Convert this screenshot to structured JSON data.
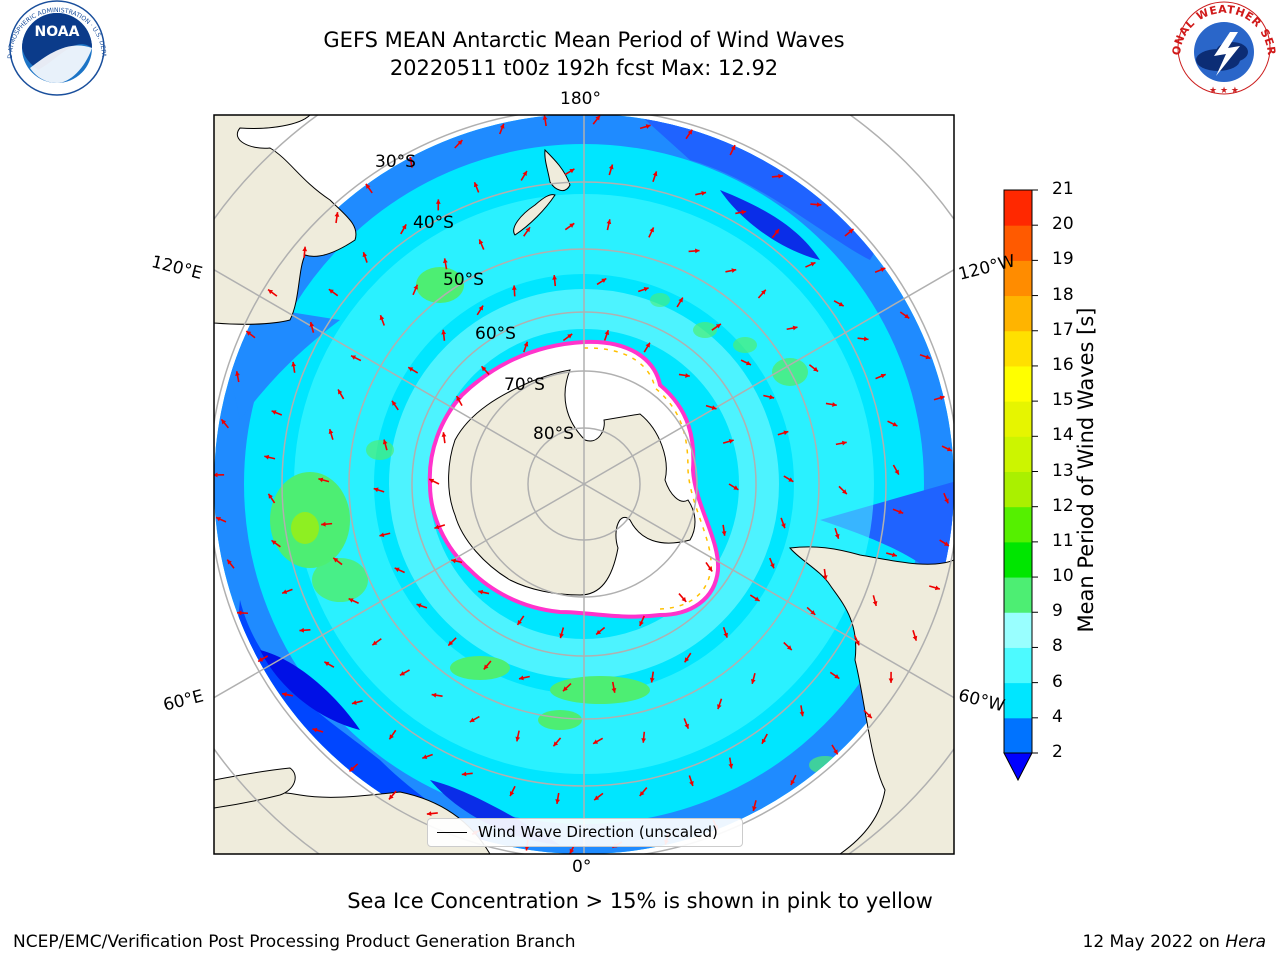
{
  "header": {
    "title_line1": "GEFS MEAN Antarctic Mean Period of Wind Waves",
    "title_line2": "20220511 t00z 192h fcst   Max: 12.92"
  },
  "logos": {
    "left_agency": "NOAA",
    "left_ring_text": "NATIONAL OCEANIC AND ATMOSPHERIC ADMINISTRATION · U.S. DEPARTMENT OF COMMERCE",
    "right_ring_text": "NATIONAL WEATHER SERVICE"
  },
  "map": {
    "projection": "south-polar-stereographic",
    "longitude_labels": {
      "top": "180°",
      "bottom": "0°",
      "left_upper": "120°E",
      "left_lower": "60°E",
      "right_upper": "120°W",
      "right_lower": "60°W"
    },
    "latitude_labels": [
      "30°S",
      "40°S",
      "50°S",
      "60°S",
      "70°S",
      "80°S"
    ],
    "colors": {
      "land": "#efecdc",
      "ice": "#ffffff",
      "ice_edge_pink": "#ff33cc",
      "ice_edge_yellow": "#ffc000",
      "grid": "#b0b0b0",
      "arrow": "#ee0000",
      "coast": "#000000"
    },
    "legend_label": "Wind Wave Direction (unscaled)"
  },
  "colorbar": {
    "label": "Mean Period of Wind Waves [s]",
    "ticks": [
      "2",
      "4",
      "6",
      "8",
      "9",
      "10",
      "11",
      "12",
      "13",
      "14",
      "15",
      "16",
      "17",
      "18",
      "19",
      "20",
      "21"
    ],
    "colors": [
      "#0073ff",
      "#00e6ff",
      "#4dfaff",
      "#99ffff",
      "#4dee73",
      "#00e600",
      "#55f000",
      "#aaf000",
      "#ccf500",
      "#e6f500",
      "#ffff00",
      "#ffe000",
      "#ffb400",
      "#ff8c00",
      "#ff5a00",
      "#ff2800",
      "#ff0000"
    ],
    "under_color": "#0000ff"
  },
  "chart_data": {
    "type": "heatmap",
    "title": "GEFS MEAN Antarctic Mean Period of Wind Waves",
    "variable": "Mean Period of Wind Waves",
    "units": "s",
    "init": "20220511 t00z",
    "forecast_hour": "192h",
    "max_value": 12.92,
    "color_levels": [
      2,
      4,
      6,
      8,
      9,
      10,
      11,
      12,
      13,
      14,
      15,
      16,
      17,
      18,
      19,
      20,
      21
    ],
    "extend": "min"
  },
  "footer": {
    "sea_ice_note": "Sea Ice Concentration > 15% is shown in pink to yellow",
    "left": "NCEP/EMC/Verification Post Processing Product Generation Branch",
    "date": "12 May 2022 on",
    "machine": "Hera"
  }
}
